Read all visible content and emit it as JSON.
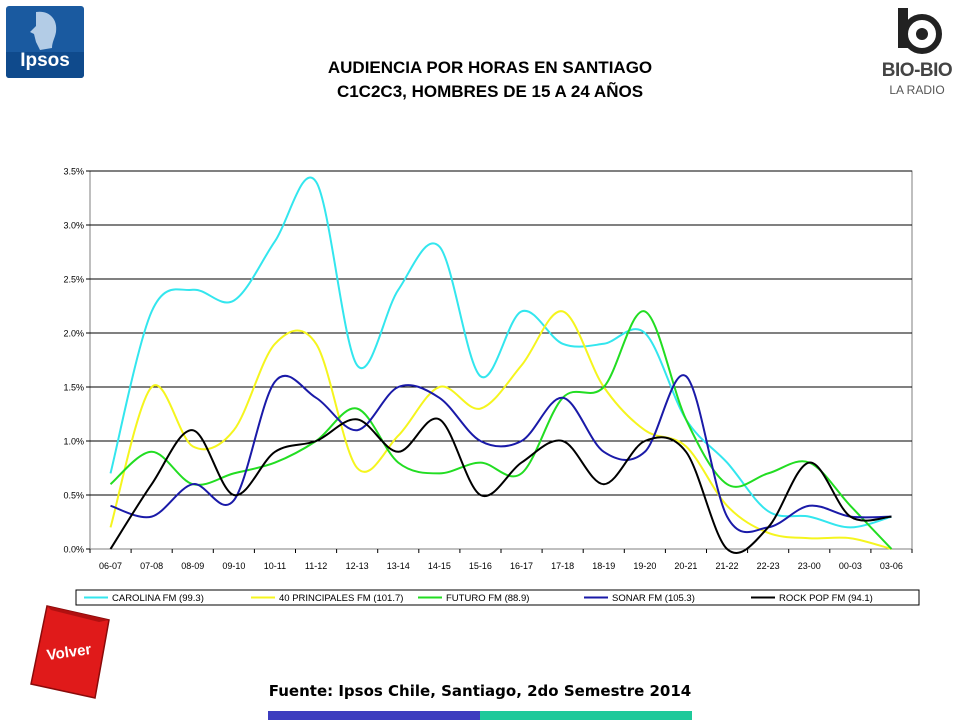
{
  "logos": {
    "ipsos": "Ipsos",
    "biobio": "BIO-BIO",
    "biobio_sub": "LA RADIO"
  },
  "title": {
    "line1": "AUDIENCIA POR HORAS EN SANTIAGO",
    "line2": "C1C2C3, HOMBRES DE 15 A 24 AÑOS"
  },
  "source": "Fuente: Ipsos Chile, Santiago, 2do Semestre 2014",
  "volver_label": "Volver",
  "colors": {
    "ipsos_blue": "#1a5aa0",
    "volver_red": "#e01a1a",
    "bar_blue": "#3d3dbf",
    "bar_teal": "#1ec99a"
  },
  "chart_data": {
    "type": "line",
    "title": "",
    "xlabel": "",
    "ylabel": "",
    "ylim": [
      0,
      0.035
    ],
    "yticks": [
      "0.0%",
      "0.5%",
      "1.0%",
      "1.5%",
      "2.0%",
      "2.5%",
      "3.0%",
      "3.5%"
    ],
    "grid": true,
    "legend_position": "bottom",
    "categories": [
      "06-07",
      "07-08",
      "08-09",
      "09-10",
      "10-11",
      "11-12",
      "12-13",
      "13-14",
      "14-15",
      "15-16",
      "16-17",
      "17-18",
      "18-19",
      "19-20",
      "20-21",
      "21-22",
      "22-23",
      "23-00",
      "00-03",
      "03-06"
    ],
    "series": [
      {
        "name": "CAROLINA FM (99.3)",
        "color": "#33e6ee",
        "values": [
          0.007,
          0.022,
          0.024,
          0.023,
          0.0285,
          0.034,
          0.017,
          0.024,
          0.028,
          0.016,
          0.022,
          0.019,
          0.019,
          0.02,
          0.012,
          0.008,
          0.0035,
          0.003,
          0.002,
          0.003
        ]
      },
      {
        "name": "40 PRINCIPALES FM (101.7)",
        "color": "#f5f51e",
        "values": [
          0.002,
          0.015,
          0.0095,
          0.011,
          0.019,
          0.019,
          0.0075,
          0.0105,
          0.015,
          0.013,
          0.017,
          0.022,
          0.015,
          0.011,
          0.0095,
          0.004,
          0.0015,
          0.001,
          0.001,
          0.0
        ]
      },
      {
        "name": "FUTURO FM (88.9)",
        "color": "#22dd22",
        "values": [
          0.006,
          0.009,
          0.006,
          0.007,
          0.008,
          0.01,
          0.013,
          0.008,
          0.007,
          0.008,
          0.007,
          0.014,
          0.015,
          0.022,
          0.012,
          0.006,
          0.007,
          0.008,
          0.004,
          0.0
        ]
      },
      {
        "name": "SONAR FM (105.3)",
        "color": "#1a1aa8",
        "values": [
          0.004,
          0.003,
          0.006,
          0.0045,
          0.0155,
          0.014,
          0.011,
          0.015,
          0.014,
          0.01,
          0.01,
          0.014,
          0.009,
          0.009,
          0.016,
          0.003,
          0.002,
          0.004,
          0.003,
          0.003
        ]
      },
      {
        "name": "ROCK  POP FM (94.1)",
        "color": "#000000",
        "values": [
          0.0,
          0.006,
          0.011,
          0.005,
          0.009,
          0.01,
          0.012,
          0.009,
          0.012,
          0.005,
          0.008,
          0.01,
          0.006,
          0.01,
          0.009,
          0.0,
          0.002,
          0.008,
          0.003,
          0.003
        ]
      }
    ]
  }
}
